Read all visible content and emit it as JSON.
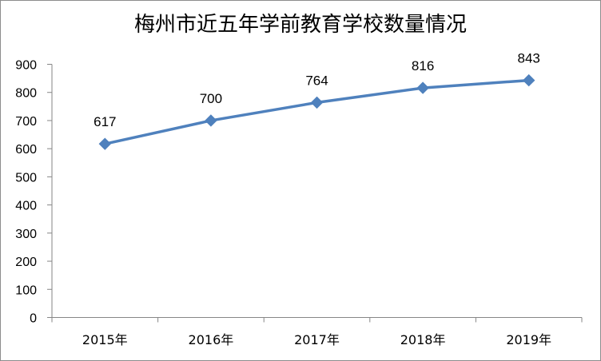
{
  "chart_data": {
    "type": "line",
    "title": "梅州市近五年学前教育学校数量情况",
    "xlabel": "",
    "ylabel": "",
    "categories": [
      "2015年",
      "2016年",
      "2017年",
      "2018年",
      "2019年"
    ],
    "series": [
      {
        "values": [
          617,
          700,
          764,
          816,
          843
        ],
        "color": "#4f81bd",
        "marker": "diamond"
      }
    ],
    "data_labels": [
      "617",
      "700",
      "764",
      "816",
      "843"
    ],
    "ylim": [
      0,
      900
    ],
    "yticks": [
      "0",
      "100",
      "200",
      "300",
      "400",
      "500",
      "600",
      "700",
      "800",
      "900"
    ],
    "grid": false,
    "legend": "none"
  }
}
